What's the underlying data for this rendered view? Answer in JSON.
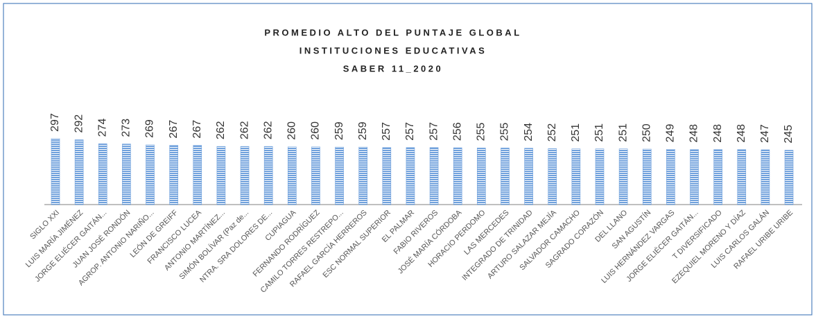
{
  "chart_data": {
    "type": "bar",
    "title": [
      "PROMEDIO ALTO DEL PUNTAJE GLOBAL",
      "INSTITUCIONES EDUCATIVAS",
      "SABER 11_2020"
    ],
    "categories": [
      "SIGLO XXI",
      "LUIS MARÍA JIMÉNEZ",
      "JORGE ELIÉCER GAITÁN...",
      "JUAN JOSÉ RONDÓN",
      "AGROP. ANTONIO NARIÑO...",
      "LEÓN DE GREIFF",
      "FRANCISCO LUCEA",
      "ANTONIO MARTÍNEZ...",
      "SIMÓN BOLÍVAR (Paz de...",
      "NTRA. SRA DOLORES DE...",
      "CUPIAGUA",
      "FERNANDO RODRÍGUEZ",
      "CAMILO TORRES RESTREPO...",
      "RAFAEL GARCÍA HERREROS",
      "ESC NORMAL SUPERIOR",
      "EL PALMAR",
      "FABIO RIVEROS",
      "JOSÉ MARÍA CÓRDOBA",
      "HORACIO PERDOMO",
      "LAS MERCEDES",
      "INTEGRADO DE TRINIDAD",
      "ARTURO SALAZAR MEJÍA",
      "SALVADOR CAMACHO",
      "SAGRADO CORAZÓN",
      "DEL LLANO",
      "SAN AGUSTÍN",
      "LUIS HERNÁNDEZ VARGAS",
      "JORGE ELIÉCER GAITÁN...",
      "T DIVERSIFICADO",
      "EZEQUIEL MORENO Y DÍAZ",
      "LUIS CARLOS GALÁN",
      "RAFAEL URIBE URIBE"
    ],
    "values": [
      297,
      292,
      274,
      273,
      269,
      267,
      267,
      262,
      262,
      262,
      260,
      260,
      259,
      259,
      257,
      257,
      257,
      256,
      255,
      255,
      254,
      252,
      251,
      251,
      251,
      250,
      249,
      248,
      248,
      248,
      247,
      245
    ],
    "color": "#6fa0dc"
  }
}
